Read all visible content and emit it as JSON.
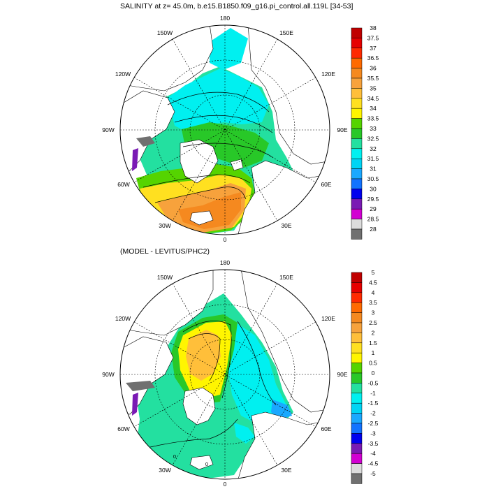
{
  "figure": {
    "title": "SALINITY at z=  45.0m, b.e15.B1850.f09_g16.pi_control.all.119L [34-53]",
    "panels": [
      {
        "id": "top",
        "longitude_labels": [
          "180",
          "150W",
          "150E",
          "120W",
          "120E",
          "90W",
          "90E",
          "60W",
          "60E",
          "30W",
          "30E",
          "0"
        ],
        "legend": {
          "labels": [
            "38",
            "37.5",
            "37",
            "36.5",
            "36",
            "35.5",
            "35",
            "34.5",
            "34",
            "33.5",
            "33",
            "32.5",
            "32",
            "31.5",
            "31",
            "30.5",
            "30",
            "29.5",
            "29",
            "28.5",
            "28"
          ],
          "colors": [
            "#c00000",
            "#e60000",
            "#ff2a00",
            "#ff6a00",
            "#f5891f",
            "#f7a23c",
            "#ffbf3a",
            "#ffe020",
            "#fff500",
            "#55d400",
            "#28c828",
            "#23e0a0",
            "#00f0f0",
            "#00d4f4",
            "#1aa8ff",
            "#1273ff",
            "#0000ee",
            "#7a1ab4",
            "#d200d2",
            "#dcdcdc",
            "#707070"
          ]
        }
      },
      {
        "id": "bottom",
        "title": "(MODEL - LEVITUS/PHC2)",
        "longitude_labels": [
          "180",
          "150W",
          "150E",
          "120W",
          "120E",
          "90W",
          "90E",
          "60W",
          "60E",
          "30W",
          "30E",
          "0"
        ],
        "contour_labels": [
          "0",
          "0"
        ],
        "legend": {
          "labels": [
            "5",
            "4.5",
            "4",
            "3.5",
            "3",
            "2.5",
            "2",
            "1.5",
            "1",
            "0.5",
            "0",
            "-0.5",
            "-1",
            "-1.5",
            "-2",
            "-2.5",
            "-3",
            "-3.5",
            "-4",
            "-4.5",
            "-5"
          ],
          "colors": [
            "#c00000",
            "#e60000",
            "#ff2a00",
            "#ff6a00",
            "#f5891f",
            "#f7a23c",
            "#ffbf3a",
            "#ffe020",
            "#fff500",
            "#55d400",
            "#28c828",
            "#23e0a0",
            "#00f0f0",
            "#00d4f4",
            "#1aa8ff",
            "#1273ff",
            "#0000ee",
            "#7a1ab4",
            "#d200d2",
            "#dcdcdc",
            "#707070"
          ]
        }
      }
    ]
  }
}
